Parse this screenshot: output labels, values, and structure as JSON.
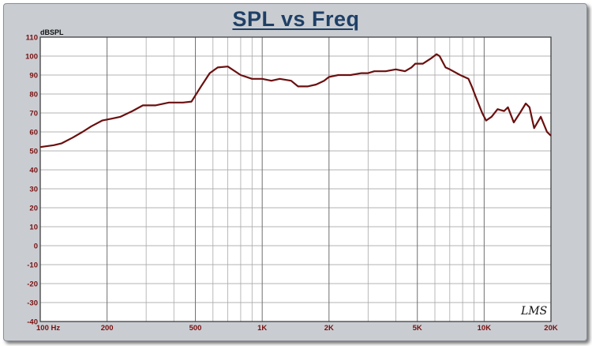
{
  "chart_data": {
    "type": "line",
    "title": "SPL vs Freq",
    "ylabel": "dBSPL",
    "xlabel": "",
    "x_scale": "log",
    "xlim": [
      100,
      20000
    ],
    "ylim": [
      -40,
      110
    ],
    "grid": true,
    "x_tick_labels": [
      {
        "value": 100,
        "label": "100  Hz"
      },
      {
        "value": 200,
        "label": "200"
      },
      {
        "value": 500,
        "label": "500"
      },
      {
        "value": 1000,
        "label": "1K"
      },
      {
        "value": 2000,
        "label": "2K"
      },
      {
        "value": 5000,
        "label": "5K"
      },
      {
        "value": 10000,
        "label": "10K"
      },
      {
        "value": 20000,
        "label": "20K"
      }
    ],
    "y_ticks": [
      110,
      100,
      90,
      80,
      70,
      60,
      50,
      40,
      30,
      20,
      10,
      0,
      -10,
      -20,
      -30,
      -40
    ],
    "series": [
      {
        "color": "#6b0f0f",
        "x": [
          100,
          115,
          125,
          140,
          155,
          170,
          190,
          210,
          230,
          260,
          290,
          330,
          380,
          440,
          480,
          530,
          580,
          630,
          700,
          800,
          900,
          1000,
          1100,
          1200,
          1350,
          1450,
          1600,
          1750,
          1900,
          2000,
          2200,
          2500,
          2800,
          3000,
          3200,
          3600,
          4000,
          4400,
          4700,
          4900,
          5300,
          5800,
          6100,
          6300,
          6700,
          7000,
          7800,
          8500,
          8800,
          9200,
          9800,
          10200,
          10800,
          11500,
          12300,
          12800,
          13600,
          14500,
          15400,
          16000,
          16800,
          18000,
          19200,
          20000
        ],
        "y": [
          52,
          53,
          54,
          57,
          60,
          63,
          66,
          67,
          68,
          71,
          74,
          74,
          75.5,
          75.5,
          76,
          84,
          91,
          94,
          94.5,
          90,
          88,
          88,
          87,
          88,
          87,
          84,
          84,
          85,
          87,
          89,
          90,
          90,
          91,
          91,
          92,
          92,
          93,
          92,
          94,
          96,
          96,
          99,
          101,
          100,
          94,
          93,
          90,
          88,
          84,
          78,
          70,
          66,
          68,
          72,
          71,
          73,
          65,
          70,
          75,
          73,
          62,
          68,
          60,
          58
        ]
      }
    ]
  },
  "watermark": "LMS"
}
